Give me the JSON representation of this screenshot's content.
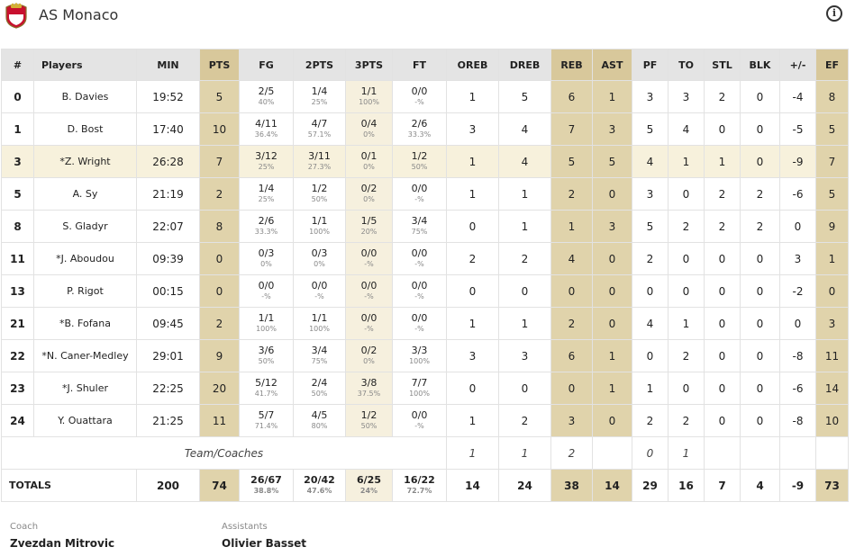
{
  "header": {
    "team_name": "AS Monaco",
    "logo_icon": "as-monaco-crest-icon",
    "info_icon": "info-icon"
  },
  "columns": [
    "#",
    "Players",
    "MIN",
    "PTS",
    "FG",
    "2PTS",
    "3PTS",
    "FT",
    "OREB",
    "DREB",
    "REB",
    "AST",
    "PF",
    "TO",
    "STL",
    "BLK",
    "+/-",
    "EF"
  ],
  "players": [
    {
      "num": "0",
      "name": "B. Davies",
      "min": "19:52",
      "pts": "5",
      "fg": "2/5",
      "fg_pct": "40%",
      "p2": "1/4",
      "p2_pct": "25%",
      "p3": "1/1",
      "p3_pct": "100%",
      "ft": "0/0",
      "ft_pct": "-%",
      "oreb": "1",
      "dreb": "5",
      "reb": "6",
      "ast": "1",
      "pf": "3",
      "to": "3",
      "stl": "2",
      "blk": "0",
      "pm": "-4",
      "ef": "8"
    },
    {
      "num": "1",
      "name": "D. Bost",
      "min": "17:40",
      "pts": "10",
      "fg": "4/11",
      "fg_pct": "36.4%",
      "p2": "4/7",
      "p2_pct": "57.1%",
      "p3": "0/4",
      "p3_pct": "0%",
      "ft": "2/6",
      "ft_pct": "33.3%",
      "oreb": "3",
      "dreb": "4",
      "reb": "7",
      "ast": "3",
      "pf": "5",
      "to": "4",
      "stl": "0",
      "blk": "0",
      "pm": "-5",
      "ef": "5"
    },
    {
      "num": "3",
      "name": "*Z. Wright",
      "min": "26:28",
      "pts": "7",
      "fg": "3/12",
      "fg_pct": "25%",
      "p2": "3/11",
      "p2_pct": "27.3%",
      "p3": "0/1",
      "p3_pct": "0%",
      "ft": "1/2",
      "ft_pct": "50%",
      "oreb": "1",
      "dreb": "4",
      "reb": "5",
      "ast": "5",
      "pf": "4",
      "to": "1",
      "stl": "1",
      "blk": "0",
      "pm": "-9",
      "ef": "7"
    },
    {
      "num": "5",
      "name": "A. Sy",
      "min": "21:19",
      "pts": "2",
      "fg": "1/4",
      "fg_pct": "25%",
      "p2": "1/2",
      "p2_pct": "50%",
      "p3": "0/2",
      "p3_pct": "0%",
      "ft": "0/0",
      "ft_pct": "-%",
      "oreb": "1",
      "dreb": "1",
      "reb": "2",
      "ast": "0",
      "pf": "3",
      "to": "0",
      "stl": "2",
      "blk": "2",
      "pm": "-6",
      "ef": "5"
    },
    {
      "num": "8",
      "name": "S. Gladyr",
      "min": "22:07",
      "pts": "8",
      "fg": "2/6",
      "fg_pct": "33.3%",
      "p2": "1/1",
      "p2_pct": "100%",
      "p3": "1/5",
      "p3_pct": "20%",
      "ft": "3/4",
      "ft_pct": "75%",
      "oreb": "0",
      "dreb": "1",
      "reb": "1",
      "ast": "3",
      "pf": "5",
      "to": "2",
      "stl": "2",
      "blk": "2",
      "pm": "0",
      "ef": "9"
    },
    {
      "num": "11",
      "name": "*J. Aboudou",
      "min": "09:39",
      "pts": "0",
      "fg": "0/3",
      "fg_pct": "0%",
      "p2": "0/3",
      "p2_pct": "0%",
      "p3": "0/0",
      "p3_pct": "-%",
      "ft": "0/0",
      "ft_pct": "-%",
      "oreb": "2",
      "dreb": "2",
      "reb": "4",
      "ast": "0",
      "pf": "2",
      "to": "0",
      "stl": "0",
      "blk": "0",
      "pm": "3",
      "ef": "1"
    },
    {
      "num": "13",
      "name": "P. Rigot",
      "min": "00:15",
      "pts": "0",
      "fg": "0/0",
      "fg_pct": "-%",
      "p2": "0/0",
      "p2_pct": "-%",
      "p3": "0/0",
      "p3_pct": "-%",
      "ft": "0/0",
      "ft_pct": "-%",
      "oreb": "0",
      "dreb": "0",
      "reb": "0",
      "ast": "0",
      "pf": "0",
      "to": "0",
      "stl": "0",
      "blk": "0",
      "pm": "-2",
      "ef": "0"
    },
    {
      "num": "21",
      "name": "*B. Fofana",
      "min": "09:45",
      "pts": "2",
      "fg": "1/1",
      "fg_pct": "100%",
      "p2": "1/1",
      "p2_pct": "100%",
      "p3": "0/0",
      "p3_pct": "-%",
      "ft": "0/0",
      "ft_pct": "-%",
      "oreb": "1",
      "dreb": "1",
      "reb": "2",
      "ast": "0",
      "pf": "4",
      "to": "1",
      "stl": "0",
      "blk": "0",
      "pm": "0",
      "ef": "3"
    },
    {
      "num": "22",
      "name": "*N. Caner-Medley",
      "min": "29:01",
      "pts": "9",
      "fg": "3/6",
      "fg_pct": "50%",
      "p2": "3/4",
      "p2_pct": "75%",
      "p3": "0/2",
      "p3_pct": "0%",
      "ft": "3/3",
      "ft_pct": "100%",
      "oreb": "3",
      "dreb": "3",
      "reb": "6",
      "ast": "1",
      "pf": "0",
      "to": "2",
      "stl": "0",
      "blk": "0",
      "pm": "-8",
      "ef": "11"
    },
    {
      "num": "23",
      "name": "*J. Shuler",
      "min": "22:25",
      "pts": "20",
      "fg": "5/12",
      "fg_pct": "41.7%",
      "p2": "2/4",
      "p2_pct": "50%",
      "p3": "3/8",
      "p3_pct": "37.5%",
      "ft": "7/7",
      "ft_pct": "100%",
      "oreb": "0",
      "dreb": "0",
      "reb": "0",
      "ast": "1",
      "pf": "1",
      "to": "0",
      "stl": "0",
      "blk": "0",
      "pm": "-6",
      "ef": "14"
    },
    {
      "num": "24",
      "name": "Y. Ouattara",
      "min": "21:25",
      "pts": "11",
      "fg": "5/7",
      "fg_pct": "71.4%",
      "p2": "4/5",
      "p2_pct": "80%",
      "p3": "1/2",
      "p3_pct": "50%",
      "ft": "0/0",
      "ft_pct": "-%",
      "oreb": "1",
      "dreb": "2",
      "reb": "3",
      "ast": "0",
      "pf": "2",
      "to": "2",
      "stl": "0",
      "blk": "0",
      "pm": "-8",
      "ef": "10"
    }
  ],
  "team_row": {
    "label": "Team/Coaches",
    "oreb": "1",
    "dreb": "1",
    "reb": "2",
    "pf": "0",
    "to": "1"
  },
  "totals": {
    "label": "TOTALS",
    "min": "200",
    "pts": "74",
    "fg": "26/67",
    "fg_pct": "38.8%",
    "p2": "20/42",
    "p2_pct": "47.6%",
    "p3": "6/25",
    "p3_pct": "24%",
    "ft": "16/22",
    "ft_pct": "72.7%",
    "oreb": "14",
    "dreb": "24",
    "reb": "38",
    "ast": "14",
    "pf": "29",
    "to": "16",
    "stl": "7",
    "blk": "4",
    "pm": "-9",
    "ef": "73"
  },
  "staff": {
    "coach_label": "Coach",
    "coach_name": "Zvezdan Mitrovic",
    "assistants_label": "Assistants",
    "assistants_name": "Olivier Basset"
  }
}
